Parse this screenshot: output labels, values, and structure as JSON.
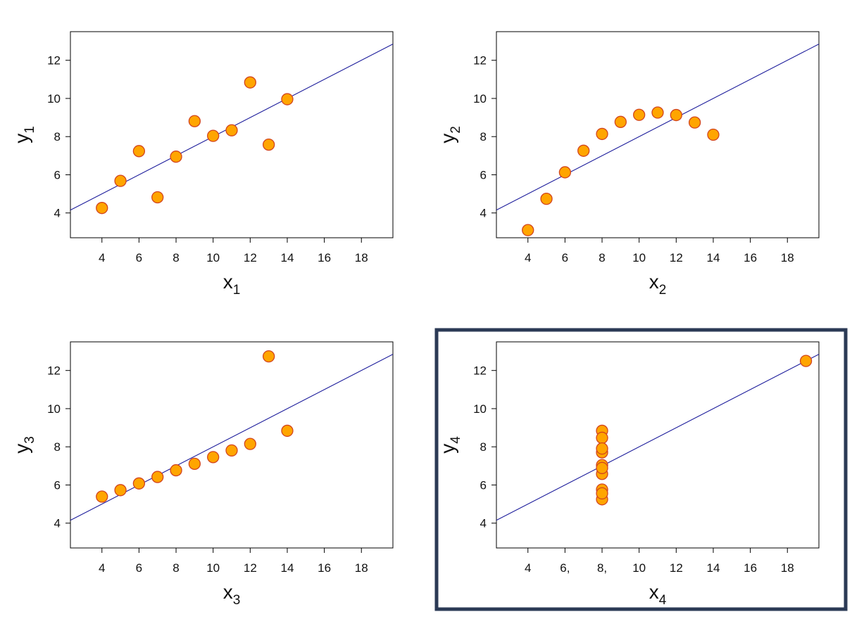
{
  "colors": {
    "point_fill": "#FFA500",
    "point_stroke": "#D2451E",
    "fit_line": "#1E1E9C",
    "frame": "#000000",
    "highlight_border": "#2B3A55"
  },
  "chart_data": [
    {
      "type": "scatter",
      "title": "",
      "xlabel": "x",
      "xlabel_sub": "1",
      "ylabel": "y",
      "ylabel_sub": "1",
      "xlim": [
        2.3,
        19.7
      ],
      "ylim": [
        2.7,
        13.5
      ],
      "xticks": [
        "4",
        "6",
        "8",
        "10",
        "12",
        "14",
        "16",
        "18"
      ],
      "yticks": [
        "4",
        "6",
        "8",
        "10",
        "12"
      ],
      "grid": false,
      "highlighted": false,
      "x": [
        10,
        8,
        13,
        9,
        11,
        14,
        6,
        4,
        12,
        7,
        5
      ],
      "y": [
        8.04,
        6.95,
        7.58,
        8.81,
        8.33,
        9.96,
        7.24,
        4.26,
        10.84,
        4.82,
        5.68
      ],
      "fit": {
        "intercept": 3.0,
        "slope": 0.5
      }
    },
    {
      "type": "scatter",
      "title": "",
      "xlabel": "x",
      "xlabel_sub": "2",
      "ylabel": "y",
      "ylabel_sub": "2",
      "xlim": [
        2.3,
        19.7
      ],
      "ylim": [
        2.7,
        13.5
      ],
      "xticks": [
        "4",
        "6",
        "8",
        "10",
        "12",
        "14",
        "16",
        "18"
      ],
      "yticks": [
        "4",
        "6",
        "8",
        "10",
        "12"
      ],
      "grid": false,
      "highlighted": false,
      "x": [
        10,
        8,
        13,
        9,
        11,
        14,
        6,
        4,
        12,
        7,
        5
      ],
      "y": [
        9.14,
        8.14,
        8.74,
        8.77,
        9.26,
        8.1,
        6.13,
        3.1,
        9.13,
        7.26,
        4.74
      ],
      "fit": {
        "intercept": 3.0,
        "slope": 0.5
      }
    },
    {
      "type": "scatter",
      "title": "",
      "xlabel": "x",
      "xlabel_sub": "3",
      "ylabel": "y",
      "ylabel_sub": "3",
      "xlim": [
        2.3,
        19.7
      ],
      "ylim": [
        2.7,
        13.5
      ],
      "xticks": [
        "4",
        "6",
        "8",
        "10",
        "12",
        "14",
        "16",
        "18"
      ],
      "yticks": [
        "4",
        "6",
        "8",
        "10",
        "12"
      ],
      "grid": false,
      "highlighted": false,
      "x": [
        10,
        8,
        13,
        9,
        11,
        14,
        6,
        4,
        12,
        7,
        5
      ],
      "y": [
        7.46,
        6.77,
        12.74,
        7.11,
        7.81,
        8.84,
        6.08,
        5.39,
        8.15,
        6.42,
        5.73
      ],
      "fit": {
        "intercept": 3.0,
        "slope": 0.5
      }
    },
    {
      "type": "scatter",
      "title": "",
      "xlabel": "x",
      "xlabel_sub": "4",
      "ylabel": "y",
      "ylabel_sub": "4",
      "xlim": [
        2.3,
        19.7
      ],
      "ylim": [
        2.7,
        13.5
      ],
      "xticks": [
        "4",
        "6,",
        "8,",
        "10",
        "12",
        "14",
        "16",
        "18"
      ],
      "yticks": [
        "4",
        "6",
        "8",
        "10",
        "12"
      ],
      "grid": false,
      "highlighted": true,
      "x": [
        8,
        8,
        8,
        8,
        8,
        8,
        8,
        19,
        8,
        8,
        8
      ],
      "y": [
        6.58,
        5.76,
        7.71,
        8.84,
        8.47,
        7.04,
        5.25,
        12.5,
        5.56,
        7.91,
        6.89
      ],
      "fit": {
        "intercept": 3.0,
        "slope": 0.5
      }
    }
  ]
}
